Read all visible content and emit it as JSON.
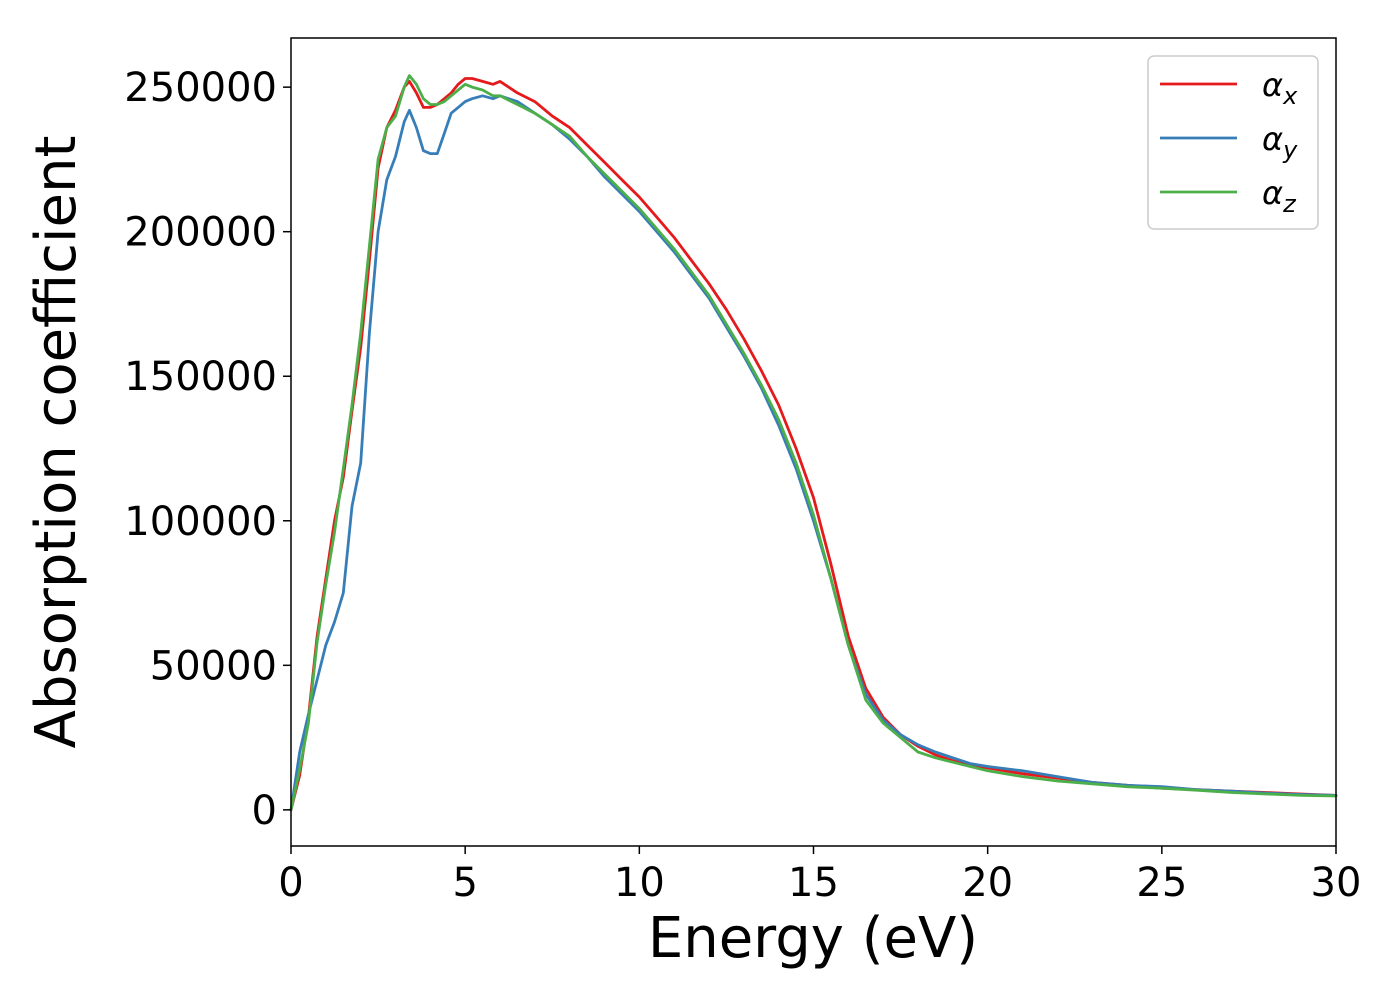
{
  "chart_data": {
    "type": "line",
    "title": "",
    "xlabel": "Energy (eV)",
    "ylabel": "Absorption coefficient",
    "xlim": [
      0,
      30
    ],
    "ylim": [
      -12500,
      267000
    ],
    "xticks": [
      0,
      5,
      10,
      15,
      20,
      25,
      30
    ],
    "yticks": [
      0,
      50000,
      100000,
      150000,
      200000,
      250000
    ],
    "xtick_labels": [
      "0",
      "5",
      "10",
      "15",
      "20",
      "25",
      "30"
    ],
    "ytick_labels": [
      "0",
      "50000",
      "100000",
      "150000",
      "200000",
      "250000"
    ],
    "grid": false,
    "legend_position": "top-right",
    "series": [
      {
        "name": "αx",
        "symbol": "α",
        "subscript": "x",
        "color": "#e41a1c",
        "x": [
          0,
          0.25,
          0.5,
          0.75,
          1.0,
          1.25,
          1.5,
          1.75,
          2.0,
          2.25,
          2.5,
          2.75,
          3.0,
          3.25,
          3.4,
          3.6,
          3.8,
          4.0,
          4.2,
          4.4,
          4.6,
          4.8,
          5.0,
          5.2,
          5.5,
          5.8,
          6.0,
          6.5,
          7.0,
          7.5,
          8.0,
          8.5,
          9.0,
          9.5,
          10.0,
          10.5,
          11.0,
          11.5,
          12.0,
          12.5,
          13.0,
          13.5,
          14.0,
          14.5,
          15.0,
          15.5,
          16.0,
          16.5,
          17.0,
          17.5,
          18.0,
          18.5,
          19.0,
          19.5,
          20.0,
          21.0,
          22.0,
          23.0,
          24.0,
          25.0,
          26.0,
          27.0,
          28.0,
          29.0,
          30.0
        ],
        "y": [
          0,
          12000,
          32000,
          60000,
          80000,
          100000,
          115000,
          138000,
          160000,
          190000,
          222000,
          236000,
          242000,
          250000,
          252000,
          248000,
          243000,
          243000,
          244000,
          246000,
          248000,
          251000,
          253000,
          253000,
          252000,
          251000,
          252000,
          248000,
          245000,
          240000,
          236000,
          230000,
          224000,
          218000,
          212000,
          205000,
          198000,
          190000,
          182000,
          173000,
          163000,
          152000,
          140000,
          125000,
          108000,
          85000,
          60000,
          42000,
          32000,
          26000,
          22000,
          19000,
          17000,
          15500,
          14500,
          12500,
          11000,
          9500,
          8500,
          7500,
          7000,
          6500,
          6000,
          5500,
          5000
        ]
      },
      {
        "name": "αy",
        "symbol": "α",
        "subscript": "y",
        "color": "#377eb8",
        "x": [
          0,
          0.25,
          0.5,
          0.75,
          1.0,
          1.25,
          1.5,
          1.75,
          2.0,
          2.25,
          2.5,
          2.75,
          3.0,
          3.25,
          3.4,
          3.6,
          3.8,
          4.0,
          4.2,
          4.4,
          4.6,
          4.8,
          5.0,
          5.2,
          5.5,
          5.8,
          6.0,
          6.5,
          7.0,
          7.5,
          8.0,
          8.5,
          9.0,
          9.5,
          10.0,
          10.5,
          11.0,
          11.5,
          12.0,
          12.5,
          13.0,
          13.5,
          14.0,
          14.5,
          15.0,
          15.5,
          16.0,
          16.5,
          17.0,
          17.5,
          18.0,
          18.5,
          19.0,
          19.5,
          20.0,
          21.0,
          22.0,
          23.0,
          24.0,
          25.0,
          26.0,
          27.0,
          28.0,
          29.0,
          30.0
        ],
        "y": [
          0,
          20000,
          33000,
          45000,
          57000,
          65000,
          75000,
          105000,
          120000,
          165000,
          200000,
          218000,
          226000,
          238000,
          242000,
          236000,
          228000,
          227000,
          227000,
          234000,
          241000,
          243000,
          245000,
          246000,
          247000,
          246000,
          247000,
          245000,
          241000,
          237000,
          232000,
          226000,
          219000,
          213000,
          207000,
          200000,
          193000,
          185000,
          177000,
          167000,
          157000,
          146000,
          133000,
          118000,
          100000,
          80000,
          57000,
          40000,
          31000,
          26000,
          22500,
          20000,
          18000,
          16000,
          15000,
          13500,
          11500,
          9500,
          8500,
          8000,
          7000,
          6500,
          5800,
          5300,
          5000
        ]
      },
      {
        "name": "αz",
        "symbol": "α",
        "subscript": "z",
        "color": "#4daf4a",
        "x": [
          0,
          0.25,
          0.5,
          0.75,
          1.0,
          1.25,
          1.5,
          1.75,
          2.0,
          2.25,
          2.5,
          2.75,
          3.0,
          3.25,
          3.4,
          3.6,
          3.8,
          4.0,
          4.2,
          4.4,
          4.6,
          4.8,
          5.0,
          5.2,
          5.5,
          5.8,
          6.0,
          6.5,
          7.0,
          7.5,
          8.0,
          8.5,
          9.0,
          9.5,
          10.0,
          10.5,
          11.0,
          11.5,
          12.0,
          12.5,
          13.0,
          13.5,
          14.0,
          14.5,
          15.0,
          15.5,
          16.0,
          16.5,
          17.0,
          17.5,
          18.0,
          18.5,
          19.0,
          19.5,
          20.0,
          21.0,
          22.0,
          23.0,
          24.0,
          25.0,
          26.0,
          27.0,
          28.0,
          29.0,
          30.0
        ],
        "y": [
          0,
          14000,
          30000,
          58000,
          78000,
          96000,
          118000,
          140000,
          165000,
          195000,
          225000,
          236000,
          240000,
          250000,
          254000,
          251000,
          246000,
          244000,
          244000,
          245000,
          247000,
          249000,
          251000,
          250000,
          249000,
          247000,
          247000,
          244000,
          241000,
          237000,
          233000,
          226000,
          220000,
          214000,
          208000,
          201000,
          194000,
          186000,
          178000,
          168000,
          158000,
          147000,
          135000,
          120000,
          102000,
          80000,
          57000,
          38000,
          30000,
          25000,
          20000,
          18000,
          16500,
          15000,
          13500,
          11500,
          10000,
          9000,
          8000,
          7500,
          6800,
          6000,
          5500,
          5000,
          4800
        ]
      }
    ]
  }
}
